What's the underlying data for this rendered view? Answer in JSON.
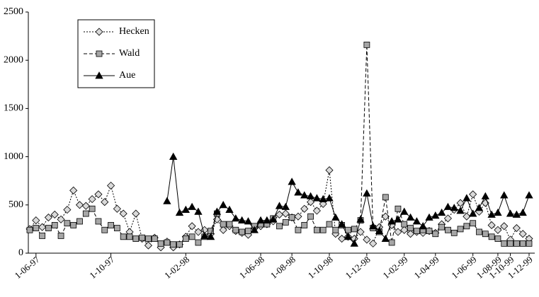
{
  "chart_data": {
    "type": "line",
    "categories": [
      null,
      "1-06-97",
      null,
      null,
      null,
      null,
      null,
      null,
      null,
      null,
      null,
      null,
      null,
      "1-10-97",
      null,
      null,
      null,
      null,
      null,
      null,
      null,
      null,
      null,
      null,
      null,
      "1-02-98",
      null,
      null,
      null,
      null,
      null,
      null,
      null,
      null,
      null,
      null,
      null,
      "1-06-98",
      null,
      null,
      null,
      null,
      "1-08-98",
      null,
      null,
      null,
      null,
      null,
      "1-10-98",
      null,
      null,
      null,
      null,
      null,
      "1-12-98",
      null,
      null,
      null,
      null,
      null,
      "1-02-99",
      null,
      null,
      null,
      null,
      "1-04-99",
      null,
      null,
      null,
      null,
      null,
      "1-06-99",
      null,
      null,
      null,
      "1-08-99",
      null,
      "1-10-99",
      null,
      null,
      "1-12-99"
    ],
    "series": [
      {
        "name": "Hecken",
        "color": "#000000",
        "dash": "2,2",
        "marker": "diamond",
        "marker_fill": "#d9d9d9",
        "values": [
          250,
          340,
          270,
          370,
          400,
          350,
          450,
          650,
          500,
          490,
          560,
          610,
          530,
          700,
          460,
          410,
          220,
          410,
          150,
          80,
          160,
          60,
          120,
          60,
          90,
          170,
          280,
          220,
          240,
          200,
          350,
          240,
          280,
          230,
          210,
          190,
          260,
          280,
          300,
          330,
          400,
          410,
          370,
          380,
          460,
          530,
          440,
          510,
          860,
          200,
          150,
          170,
          150,
          220,
          140,
          100,
          270,
          380,
          290,
          220,
          240,
          200,
          220,
          210,
          230,
          210,
          300,
          360,
          450,
          520,
          380,
          610,
          430,
          520,
          290,
          240,
          280,
          140,
          260,
          200,
          150
        ]
      },
      {
        "name": "Wald",
        "color": "#000000",
        "dash": "5,3",
        "marker": "square",
        "marker_fill": "#a6a6a6",
        "values": [
          240,
          260,
          180,
          260,
          290,
          180,
          310,
          290,
          330,
          410,
          460,
          330,
          240,
          290,
          260,
          170,
          170,
          150,
          160,
          150,
          150,
          100,
          110,
          90,
          90,
          150,
          170,
          110,
          170,
          230,
          410,
          300,
          300,
          240,
          220,
          230,
          280,
          300,
          300,
          360,
          280,
          320,
          370,
          240,
          290,
          380,
          240,
          240,
          300,
          240,
          290,
          240,
          250,
          340,
          2160,
          260,
          220,
          580,
          110,
          460,
          300,
          260,
          230,
          240,
          230,
          200,
          270,
          240,
          210,
          250,
          280,
          310,
          220,
          200,
          170,
          150,
          100,
          100,
          100,
          100,
          100
        ]
      },
      {
        "name": "Aue",
        "color": "#000000",
        "dash": "",
        "marker": "triangle",
        "marker_fill": "#000000",
        "values": [
          null,
          null,
          null,
          null,
          null,
          null,
          null,
          null,
          null,
          null,
          null,
          null,
          null,
          null,
          null,
          null,
          null,
          null,
          null,
          null,
          null,
          null,
          540,
          1000,
          420,
          450,
          480,
          430,
          180,
          170,
          430,
          500,
          450,
          360,
          340,
          330,
          240,
          340,
          340,
          350,
          490,
          480,
          740,
          630,
          600,
          590,
          570,
          560,
          570,
          370,
          300,
          170,
          100,
          350,
          620,
          280,
          230,
          150,
          330,
          350,
          430,
          370,
          330,
          280,
          370,
          390,
          420,
          480,
          470,
          440,
          570,
          410,
          470,
          590,
          400,
          420,
          600,
          410,
          400,
          420,
          600
        ]
      }
    ],
    "ylim": [
      0,
      2500
    ],
    "yticks": [
      0,
      500,
      1000,
      1500,
      2000,
      2500
    ]
  }
}
